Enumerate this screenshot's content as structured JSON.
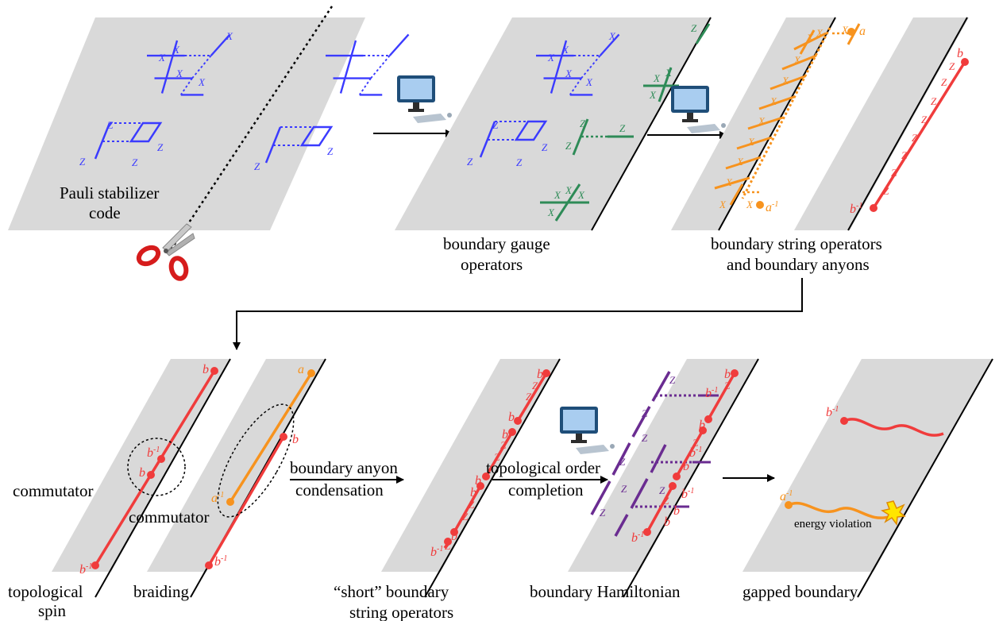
{
  "captions": {
    "pauli_line1": "Pauli stabilizer",
    "pauli_line2": "code",
    "gauge_line1": "boundary gauge",
    "gauge_line2": "operators",
    "string_line1": "boundary string operators",
    "string_line2": "and boundary anyons",
    "commutator1": "commutator",
    "commutator2": "commutator",
    "condensation_line1": "boundary anyon",
    "condensation_line2": "condensation",
    "completion_line1": "topological order",
    "completion_line2": "completion",
    "topo_spin_line1": "topological",
    "topo_spin_line2": "spin",
    "braiding": "braiding",
    "short_line1": "“short” boundary",
    "short_line2": "string operators",
    "hamiltonian": "boundary Hamiltonian",
    "gapped": "gapped boundary",
    "energy": "energy violation"
  },
  "operators": {
    "x": "X",
    "z": "Z"
  },
  "anyons": {
    "a": "a",
    "b": "b",
    "inverse": "-1"
  },
  "colors": {
    "plane": "#d9d9d9",
    "blue": "#3b3bff",
    "green": "#2e8b57",
    "orange": "#f7931e",
    "red": "#f03c3c",
    "purple": "#6a2c91"
  },
  "icons": [
    "computer-icon",
    "scissors-icon",
    "arrow-icon",
    "explosion-icon"
  ]
}
